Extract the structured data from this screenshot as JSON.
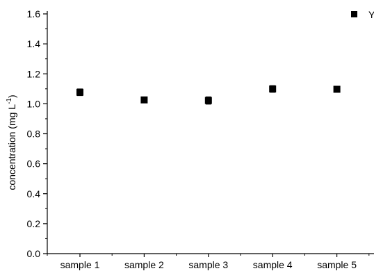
{
  "chart_data": {
    "type": "scatter",
    "categories": [
      "sample 1",
      "sample 2",
      "sample 3",
      "sample 4",
      "sample 5"
    ],
    "series": [
      {
        "name": "Y",
        "values": [
          1.077,
          1.026,
          1.022,
          1.099,
          1.097
        ],
        "errors": [
          0.022,
          0.016,
          0.024,
          0.022,
          0
        ]
      }
    ],
    "title": "",
    "xlabel": "",
    "ylabel": "concentration (mg L",
    "ylabel_superscript": "-1",
    "ylabel_suffix": ")",
    "ylim": [
      0.0,
      1.6
    ],
    "yticks": [
      "0.0",
      "0.2",
      "0.4",
      "0.6",
      "0.8",
      "1.0",
      "1.2",
      "1.4",
      "1.6"
    ],
    "grid": false,
    "legend_position": "top-right",
    "marker": "square",
    "marker_color": "#000000"
  }
}
